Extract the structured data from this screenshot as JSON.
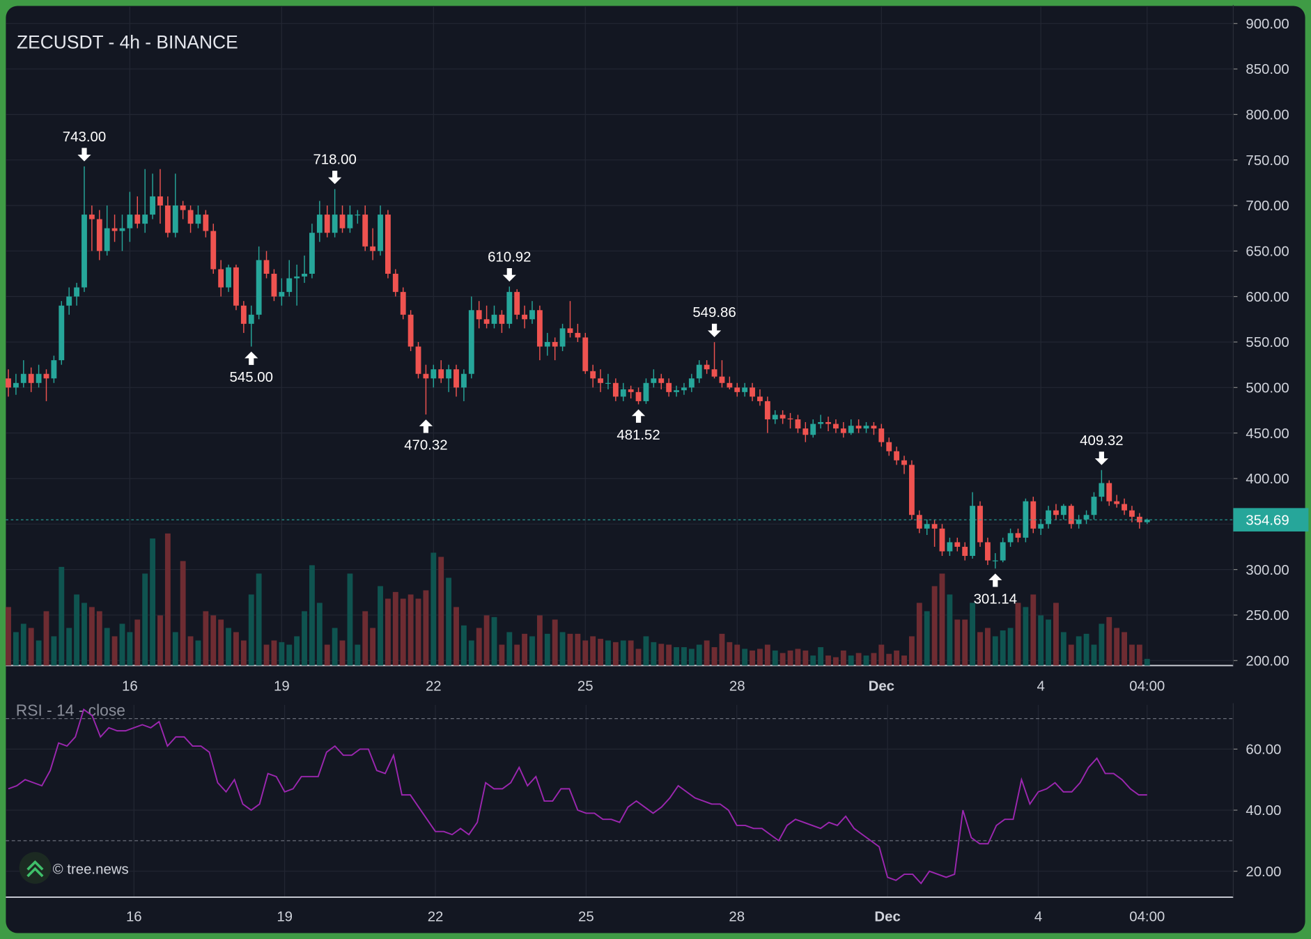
{
  "chart_data": [
    {
      "type": "candlestick",
      "title": "ZECUSDT - 4h - BINANCE",
      "up_color": "#26a69a",
      "down_color": "#ef5350",
      "volume_up_color": "#0f5450",
      "volume_down_color": "#6e2c32",
      "grid": true,
      "ylim": [
        194.5,
        918.4
      ],
      "yticks": [
        {
          "value": 200,
          "label": "200.00"
        },
        {
          "value": 250,
          "label": "250.00"
        },
        {
          "value": 300,
          "label": "300.00"
        },
        {
          "value": 350,
          "label": "350.00"
        },
        {
          "value": 400,
          "label": "400.00"
        },
        {
          "value": 450,
          "label": "450.00"
        },
        {
          "value": 500,
          "label": "500.00"
        },
        {
          "value": 550,
          "label": "550.00"
        },
        {
          "value": 600,
          "label": "600.00"
        },
        {
          "value": 650,
          "label": "650.00"
        },
        {
          "value": 700,
          "label": "700.00"
        },
        {
          "value": 750,
          "label": "750.00"
        },
        {
          "value": 800,
          "label": "800.00"
        },
        {
          "value": 850,
          "label": "850.00"
        },
        {
          "value": 900,
          "label": "900.00"
        }
      ],
      "xticks": [
        {
          "value": 16,
          "label": "16"
        },
        {
          "value": 36,
          "label": "19"
        },
        {
          "value": 56,
          "label": "22"
        },
        {
          "value": 76,
          "label": "25"
        },
        {
          "value": 96,
          "label": "28"
        },
        {
          "value": 115,
          "label": "Dec"
        },
        {
          "value": 136,
          "label": "4"
        },
        {
          "value": 150,
          "label": "04:00"
        }
      ],
      "last_price": {
        "value": 354.69,
        "label": "354.69"
      },
      "annotations": [
        {
          "index": 10,
          "value": 743,
          "label": "743.00",
          "side": "high"
        },
        {
          "index": 32,
          "value": 545,
          "label": "545.00",
          "side": "low"
        },
        {
          "index": 43,
          "value": 718,
          "label": "718.00",
          "side": "high"
        },
        {
          "index": 55,
          "value": 470.32,
          "label": "470.32",
          "side": "low"
        },
        {
          "index": 66,
          "value": 610.92,
          "label": "610.92",
          "side": "high"
        },
        {
          "index": 83,
          "value": 481.52,
          "label": "481.52",
          "side": "low"
        },
        {
          "index": 93,
          "value": 549.86,
          "label": "549.86",
          "side": "high"
        },
        {
          "index": 130,
          "value": 301.14,
          "label": "301.14",
          "side": "low"
        },
        {
          "index": 144,
          "value": 409.32,
          "label": "409.32",
          "side": "high"
        }
      ],
      "ohlc": [
        [
          510,
          520,
          490,
          500
        ],
        [
          500,
          515,
          492,
          505
        ],
        [
          505,
          530,
          500,
          515
        ],
        [
          515,
          522,
          495,
          505
        ],
        [
          505,
          525,
          500,
          515
        ],
        [
          515,
          520,
          485,
          510
        ],
        [
          510,
          535,
          505,
          530
        ],
        [
          530,
          595,
          525,
          590
        ],
        [
          590,
          610,
          580,
          600
        ],
        [
          600,
          615,
          590,
          610
        ],
        [
          610,
          743,
          605,
          690
        ],
        [
          690,
          700,
          650,
          685
        ],
        [
          685,
          695,
          640,
          650
        ],
        [
          650,
          700,
          645,
          675
        ],
        [
          675,
          690,
          660,
          672
        ],
        [
          672,
          690,
          650,
          675
        ],
        [
          675,
          715,
          660,
          690
        ],
        [
          690,
          710,
          675,
          680
        ],
        [
          680,
          740,
          670,
          690
        ],
        [
          690,
          735,
          685,
          710
        ],
        [
          710,
          740,
          680,
          700
        ],
        [
          700,
          710,
          665,
          670
        ],
        [
          670,
          735,
          665,
          700
        ],
        [
          700,
          705,
          685,
          695
        ],
        [
          695,
          700,
          670,
          680
        ],
        [
          680,
          700,
          675,
          690
        ],
        [
          690,
          695,
          665,
          672
        ],
        [
          672,
          680,
          625,
          630
        ],
        [
          630,
          640,
          600,
          610
        ],
        [
          610,
          635,
          605,
          632
        ],
        [
          632,
          635,
          585,
          590
        ],
        [
          590,
          595,
          560,
          570
        ],
        [
          570,
          590,
          545,
          580
        ],
        [
          580,
          655,
          575,
          640
        ],
        [
          640,
          650,
          620,
          625
        ],
        [
          625,
          630,
          595,
          600
        ],
        [
          600,
          620,
          590,
          605
        ],
        [
          605,
          640,
          600,
          620
        ],
        [
          620,
          635,
          590,
          622
        ],
        [
          622,
          645,
          615,
          625
        ],
        [
          625,
          680,
          620,
          670
        ],
        [
          670,
          705,
          660,
          690
        ],
        [
          690,
          700,
          665,
          670
        ],
        [
          670,
          718,
          665,
          690
        ],
        [
          690,
          700,
          670,
          675
        ],
        [
          675,
          700,
          670,
          690
        ],
        [
          690,
          695,
          680,
          690
        ],
        [
          690,
          700,
          650,
          655
        ],
        [
          655,
          675,
          640,
          650
        ],
        [
          650,
          700,
          645,
          690
        ],
        [
          690,
          695,
          620,
          625
        ],
        [
          625,
          630,
          600,
          605
        ],
        [
          605,
          610,
          575,
          580
        ],
        [
          580,
          585,
          540,
          545
        ],
        [
          545,
          550,
          510,
          515
        ],
        [
          515,
          525,
          470.32,
          510
        ],
        [
          510,
          525,
          500,
          520
        ],
        [
          520,
          530,
          505,
          510
        ],
        [
          510,
          525,
          495,
          520
        ],
        [
          520,
          525,
          490,
          500
        ],
        [
          500,
          520,
          485,
          515
        ],
        [
          515,
          600,
          510,
          585
        ],
        [
          585,
          595,
          565,
          575
        ],
        [
          575,
          590,
          565,
          570
        ],
        [
          570,
          590,
          565,
          580
        ],
        [
          580,
          585,
          560,
          570
        ],
        [
          570,
          610.92,
          565,
          605
        ],
        [
          605,
          608,
          575,
          580
        ],
        [
          580,
          590,
          565,
          575
        ],
        [
          575,
          595,
          570,
          585
        ],
        [
          585,
          590,
          530,
          545
        ],
        [
          545,
          560,
          535,
          550
        ],
        [
          550,
          555,
          530,
          545
        ],
        [
          545,
          570,
          540,
          565
        ],
        [
          565,
          595,
          555,
          560
        ],
        [
          560,
          570,
          550,
          555
        ],
        [
          555,
          560,
          515,
          518
        ],
        [
          518,
          525,
          500,
          510
        ],
        [
          510,
          520,
          495,
          505
        ],
        [
          505,
          515,
          498,
          505
        ],
        [
          505,
          510,
          485,
          490
        ],
        [
          490,
          505,
          485,
          498
        ],
        [
          498,
          502,
          488,
          495
        ],
        [
          495,
          500,
          481.52,
          485
        ],
        [
          485,
          510,
          482,
          505
        ],
        [
          505,
          520,
          500,
          510
        ],
        [
          510,
          515,
          498,
          505
        ],
        [
          505,
          510,
          490,
          495
        ],
        [
          495,
          502,
          490,
          497
        ],
        [
          497,
          505,
          492,
          500
        ],
        [
          500,
          515,
          495,
          510
        ],
        [
          510,
          530,
          505,
          525
        ],
        [
          525,
          530,
          515,
          520
        ],
        [
          520,
          549.86,
          510,
          512
        ],
        [
          512,
          530,
          500,
          505
        ],
        [
          505,
          512,
          498,
          500
        ],
        [
          500,
          505,
          490,
          495
        ],
        [
          495,
          505,
          490,
          500
        ],
        [
          500,
          505,
          485,
          490
        ],
        [
          490,
          498,
          480,
          485
        ],
        [
          485,
          490,
          450,
          465
        ],
        [
          465,
          475,
          460,
          470
        ],
        [
          470,
          475,
          460,
          466
        ],
        [
          466,
          472,
          455,
          465
        ],
        [
          465,
          470,
          450,
          455
        ],
        [
          455,
          462,
          440,
          448
        ],
        [
          448,
          465,
          445,
          460
        ],
        [
          460,
          470,
          455,
          462
        ],
        [
          462,
          468,
          452,
          460
        ],
        [
          460,
          465,
          450,
          455
        ],
        [
          455,
          462,
          445,
          450
        ],
        [
          450,
          465,
          448,
          458
        ],
        [
          458,
          465,
          450,
          455
        ],
        [
          455,
          462,
          450,
          458
        ],
        [
          458,
          462,
          448,
          455
        ],
        [
          455,
          460,
          435,
          440
        ],
        [
          440,
          445,
          425,
          430
        ],
        [
          430,
          435,
          415,
          420
        ],
        [
          420,
          425,
          405,
          415
        ],
        [
          415,
          420,
          355,
          360
        ],
        [
          360,
          365,
          340,
          345
        ],
        [
          345,
          355,
          338,
          350
        ],
        [
          350,
          355,
          325,
          345
        ],
        [
          345,
          350,
          315,
          320
        ],
        [
          320,
          335,
          315,
          330
        ],
        [
          330,
          335,
          320,
          325
        ],
        [
          325,
          330,
          310,
          315
        ],
        [
          315,
          385,
          312,
          370
        ],
        [
          370,
          375,
          325,
          330
        ],
        [
          330,
          335,
          305,
          310
        ],
        [
          310,
          318,
          301.14,
          310
        ],
        [
          310,
          335,
          308,
          330
        ],
        [
          330,
          345,
          325,
          340
        ],
        [
          340,
          345,
          330,
          335
        ],
        [
          335,
          378,
          330,
          375
        ],
        [
          375,
          380,
          340,
          345
        ],
        [
          345,
          355,
          338,
          350
        ],
        [
          350,
          370,
          345,
          365
        ],
        [
          365,
          372,
          355,
          360
        ],
        [
          360,
          372,
          355,
          370
        ],
        [
          370,
          372,
          345,
          350
        ],
        [
          350,
          360,
          345,
          355
        ],
        [
          355,
          365,
          350,
          360
        ],
        [
          360,
          385,
          355,
          380
        ],
        [
          380,
          409.32,
          375,
          395
        ],
        [
          395,
          398,
          370,
          375
        ],
        [
          375,
          382,
          368,
          372
        ],
        [
          372,
          378,
          360,
          365
        ],
        [
          365,
          370,
          352,
          358
        ],
        [
          358,
          362,
          345,
          352
        ],
        [
          352,
          356,
          350,
          354.69
        ]
      ],
      "volume": [
        70,
        40,
        50,
        45,
        30,
        65,
        35,
        118,
        45,
        85,
        75,
        70,
        65,
        45,
        35,
        50,
        40,
        55,
        110,
        152,
        60,
        158,
        40,
        125,
        35,
        30,
        65,
        60,
        55,
        45,
        40,
        30,
        85,
        110,
        25,
        30,
        28,
        25,
        35,
        65,
        120,
        75,
        25,
        45,
        30,
        110,
        25,
        65,
        45,
        95,
        80,
        88,
        80,
        85,
        80,
        90,
        135,
        130,
        105,
        70,
        48,
        30,
        45,
        60,
        58,
        25,
        40,
        25,
        38,
        35,
        60,
        38,
        55,
        40,
        38,
        38,
        30,
        35,
        32,
        30,
        28,
        30,
        30,
        20,
        35,
        28,
        26,
        25,
        22,
        22,
        20,
        25,
        30,
        22,
        38,
        28,
        25,
        20,
        18,
        20,
        25,
        18,
        15,
        18,
        20,
        18,
        12,
        22,
        12,
        10,
        18,
        12,
        15,
        12,
        15,
        25,
        14,
        18,
        12,
        35,
        75,
        65,
        95,
        110,
        85,
        55,
        55,
        75,
        40,
        45,
        35,
        42,
        45,
        75,
        70,
        85,
        60,
        55,
        75,
        40,
        25,
        35,
        38,
        25,
        50,
        58,
        45,
        40,
        25,
        25,
        8
      ]
    },
    {
      "type": "line",
      "title": "RSI - 14 - close",
      "color": "#9c27b0",
      "grid": true,
      "ylim": [
        11.5,
        74.5
      ],
      "yticks": [
        {
          "value": 20,
          "label": "20.00"
        },
        {
          "value": 40,
          "label": "40.00"
        },
        {
          "value": 60,
          "label": "60.00"
        }
      ],
      "hlines": [
        30,
        70
      ],
      "xticks": [
        {
          "value": 15,
          "label": "16"
        },
        {
          "value": 33,
          "label": "19"
        },
        {
          "value": 51,
          "label": "22"
        },
        {
          "value": 69,
          "label": "25"
        },
        {
          "value": 87,
          "label": "28"
        },
        {
          "value": 105,
          "label": "Dec"
        },
        {
          "value": 123,
          "label": "4"
        },
        {
          "value": 136,
          "label": "04:00"
        }
      ],
      "values": [
        47,
        48,
        50,
        49,
        48,
        53,
        62,
        61,
        64,
        73,
        71,
        64,
        67,
        66,
        66,
        67,
        68,
        67,
        69,
        61,
        64,
        64,
        61,
        61,
        59,
        49,
        46,
        50,
        42,
        40,
        42,
        52,
        51,
        46,
        47,
        51,
        51,
        51,
        59,
        61,
        58,
        58,
        60,
        60,
        53,
        52,
        58,
        45,
        45,
        41,
        37,
        33,
        33,
        32,
        34,
        32,
        36,
        49,
        47,
        47,
        49,
        54,
        48,
        51,
        43,
        43,
        47,
        47,
        40,
        39,
        39,
        37,
        37,
        36,
        41,
        43,
        41,
        39,
        41,
        44,
        48,
        46,
        44,
        43,
        42,
        42,
        40,
        35,
        35,
        34,
        34,
        32,
        30,
        35,
        37,
        36,
        35,
        34,
        36,
        35,
        38,
        34,
        32,
        30,
        28,
        18,
        17,
        19,
        19,
        16,
        20,
        19,
        18,
        19,
        40,
        31,
        29,
        29,
        35,
        37,
        37,
        50,
        42,
        46,
        47,
        49,
        46,
        46,
        49,
        54,
        57,
        52,
        52,
        50,
        47,
        45,
        45
      ]
    }
  ],
  "watermark": "© tree.news"
}
